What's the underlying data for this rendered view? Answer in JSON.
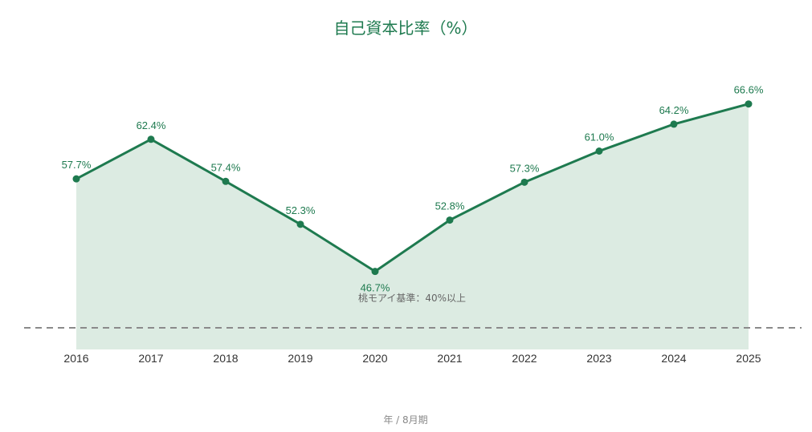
{
  "chart_data": {
    "type": "area",
    "title": "自己資本比率（%）",
    "xlabel": "年 / 8月期",
    "ylabel": "",
    "categories": [
      "2016",
      "2017",
      "2018",
      "2019",
      "2020",
      "2021",
      "2022",
      "2023",
      "2024",
      "2025"
    ],
    "series": [
      {
        "values": [
          57.7,
          62.4,
          57.4,
          52.3,
          46.7,
          52.8,
          57.3,
          61.0,
          64.2,
          66.6
        ],
        "data_labels": [
          "57.7%",
          "62.4%",
          "57.4%",
          "52.3%",
          "46.7%",
          "52.8%",
          "57.3%",
          "61.0%",
          "64.2%",
          "66.6%"
        ]
      }
    ],
    "reference_line": {
      "value": 40,
      "label": "桃モアイ基準：40%以上",
      "style": "dashed"
    },
    "ylim": [
      30,
      70
    ],
    "grid": false,
    "colors": {
      "line": "#1e7a4f",
      "area": "#dcebe2",
      "reference": "#8a8a8a",
      "title": "#1e7a4f"
    }
  }
}
